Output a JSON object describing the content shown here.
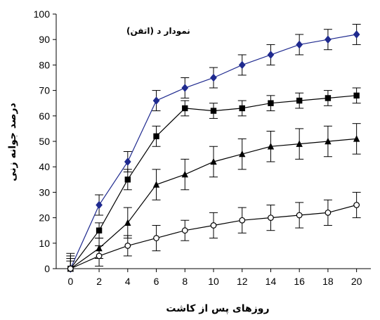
{
  "chart_data": {
    "type": "line",
    "title": "",
    "annotation": "نمودار د (اتفن)",
    "xlabel": "روزهای پس از کاشت",
    "ylabel": "درصد جوانه زنی",
    "xlim": [
      -1,
      21
    ],
    "ylim": [
      0,
      100
    ],
    "xticks": [
      0,
      2,
      4,
      6,
      8,
      10,
      12,
      14,
      16,
      18,
      20
    ],
    "yticks": [
      0,
      10,
      20,
      30,
      40,
      50,
      60,
      70,
      80,
      90,
      100
    ],
    "grid": false,
    "legend": "none",
    "series": [
      {
        "marker": "diamond",
        "color": "#1f2a8f",
        "marker_color": "#1f2a8f",
        "x": [
          0,
          2,
          4,
          6,
          8,
          10,
          12,
          14,
          16,
          18,
          20
        ],
        "y": [
          0,
          25,
          42,
          66,
          71,
          75,
          80,
          84,
          88,
          90,
          92
        ],
        "err": [
          3,
          4,
          4,
          4,
          4,
          4,
          4,
          4,
          4,
          4,
          4
        ]
      },
      {
        "marker": "square",
        "color": "#000000",
        "marker_color": "#000000",
        "x": [
          0,
          2,
          4,
          6,
          8,
          10,
          12,
          14,
          16,
          18,
          20
        ],
        "y": [
          0,
          15,
          35,
          52,
          63,
          62,
          63,
          65,
          66,
          67,
          68
        ],
        "err": [
          5,
          3,
          4,
          4,
          3,
          3,
          3,
          3,
          3,
          3,
          3
        ]
      },
      {
        "marker": "triangle",
        "color": "#000000",
        "marker_color": "#000000",
        "x": [
          0,
          2,
          4,
          6,
          8,
          10,
          12,
          14,
          16,
          18,
          20
        ],
        "y": [
          0,
          8,
          18,
          33,
          37,
          42,
          45,
          48,
          49,
          50,
          51
        ],
        "err": [
          4,
          4,
          6,
          6,
          6,
          6,
          6,
          6,
          6,
          6,
          6
        ]
      },
      {
        "marker": "circle-open",
        "color": "#000000",
        "marker_color": "#000000",
        "x": [
          0,
          2,
          4,
          6,
          8,
          10,
          12,
          14,
          16,
          18,
          20
        ],
        "y": [
          0,
          5,
          9,
          12,
          15,
          17,
          19,
          20,
          21,
          22,
          25
        ],
        "err": [
          6,
          4,
          4,
          5,
          4,
          5,
          5,
          5,
          5,
          5,
          5
        ]
      }
    ]
  }
}
